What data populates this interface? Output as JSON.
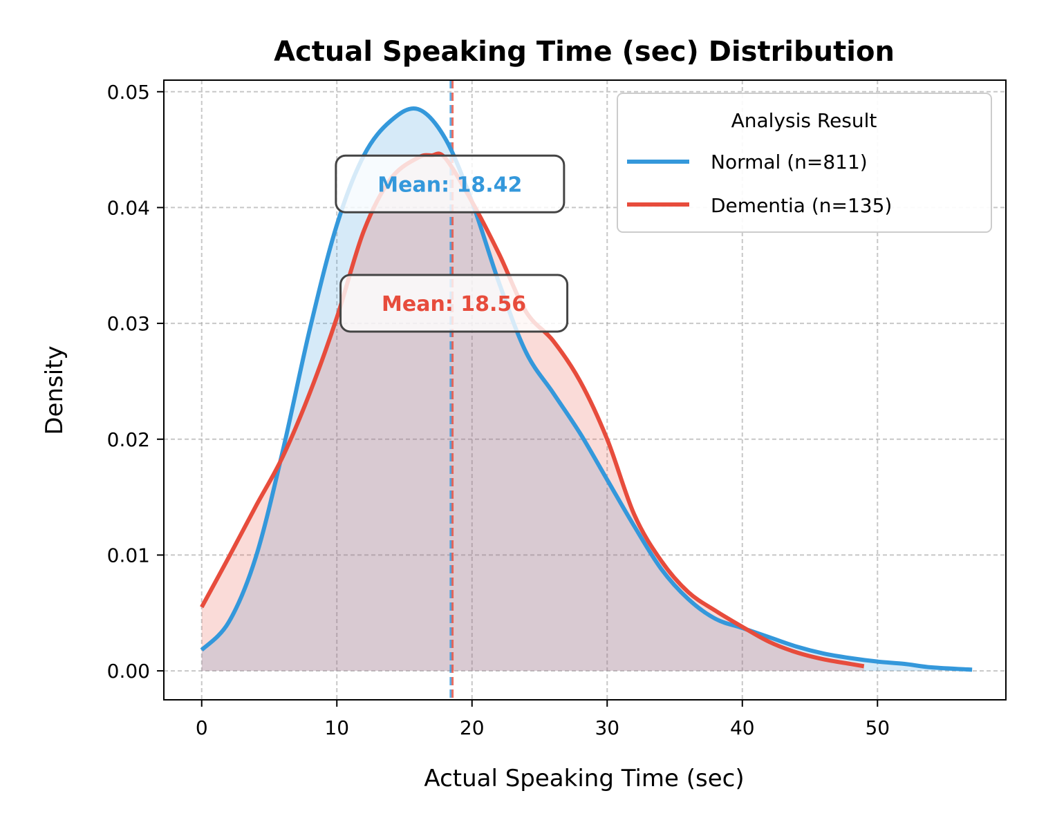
{
  "chart_data": {
    "type": "area",
    "title": "Actual Speaking Time (sec) Distribution",
    "xlabel": "Actual Speaking Time (sec)",
    "ylabel": "Density",
    "xlim": [
      -2.8,
      59.5
    ],
    "ylim": [
      -0.0025,
      0.051
    ],
    "xticks": [
      0,
      10,
      20,
      30,
      40,
      50
    ],
    "yticks": [
      0.0,
      0.01,
      0.02,
      0.03,
      0.04,
      0.05
    ],
    "xtick_labels": [
      "0",
      "10",
      "20",
      "30",
      "40",
      "50"
    ],
    "ytick_labels": [
      "0.00",
      "0.01",
      "0.02",
      "0.03",
      "0.04",
      "0.05"
    ],
    "grid": true,
    "legend": {
      "title": "Analysis Result",
      "position": "top-right"
    },
    "series": [
      {
        "name": "Normal (n=811)",
        "color": "#3498db",
        "mean": 18.42,
        "mean_label": "Mean: 18.42",
        "x": [
          0,
          2,
          4,
          6,
          8,
          10,
          12,
          14,
          16,
          18,
          20,
          22,
          24,
          26,
          28,
          30,
          32,
          34,
          36,
          38,
          40,
          42,
          44,
          46,
          48,
          50,
          52,
          54,
          57
        ],
        "y": [
          0.0018,
          0.0042,
          0.0098,
          0.019,
          0.0295,
          0.0385,
          0.0445,
          0.0475,
          0.0485,
          0.046,
          0.0405,
          0.0335,
          0.0275,
          0.024,
          0.0205,
          0.0165,
          0.0125,
          0.0088,
          0.0062,
          0.0045,
          0.0037,
          0.0029,
          0.0021,
          0.0015,
          0.0011,
          0.0008,
          0.0006,
          0.0003,
          0.0001
        ]
      },
      {
        "name": "Dementia (n=135)",
        "color": "#e74c3c",
        "mean": 18.56,
        "mean_label": "Mean: 18.56",
        "x": [
          0,
          2,
          4,
          6,
          8,
          10,
          12,
          14,
          16,
          17,
          18,
          20,
          22,
          24,
          26,
          28,
          30,
          32,
          34,
          36,
          38,
          40,
          42,
          44,
          46,
          48,
          49
        ],
        "y": [
          0.0055,
          0.0098,
          0.0142,
          0.0185,
          0.024,
          0.0305,
          0.038,
          0.0425,
          0.0443,
          0.0445,
          0.0443,
          0.0405,
          0.036,
          0.031,
          0.0285,
          0.025,
          0.02,
          0.0135,
          0.0095,
          0.0068,
          0.0052,
          0.0038,
          0.0025,
          0.0016,
          0.001,
          0.0006,
          0.0004
        ]
      }
    ]
  }
}
